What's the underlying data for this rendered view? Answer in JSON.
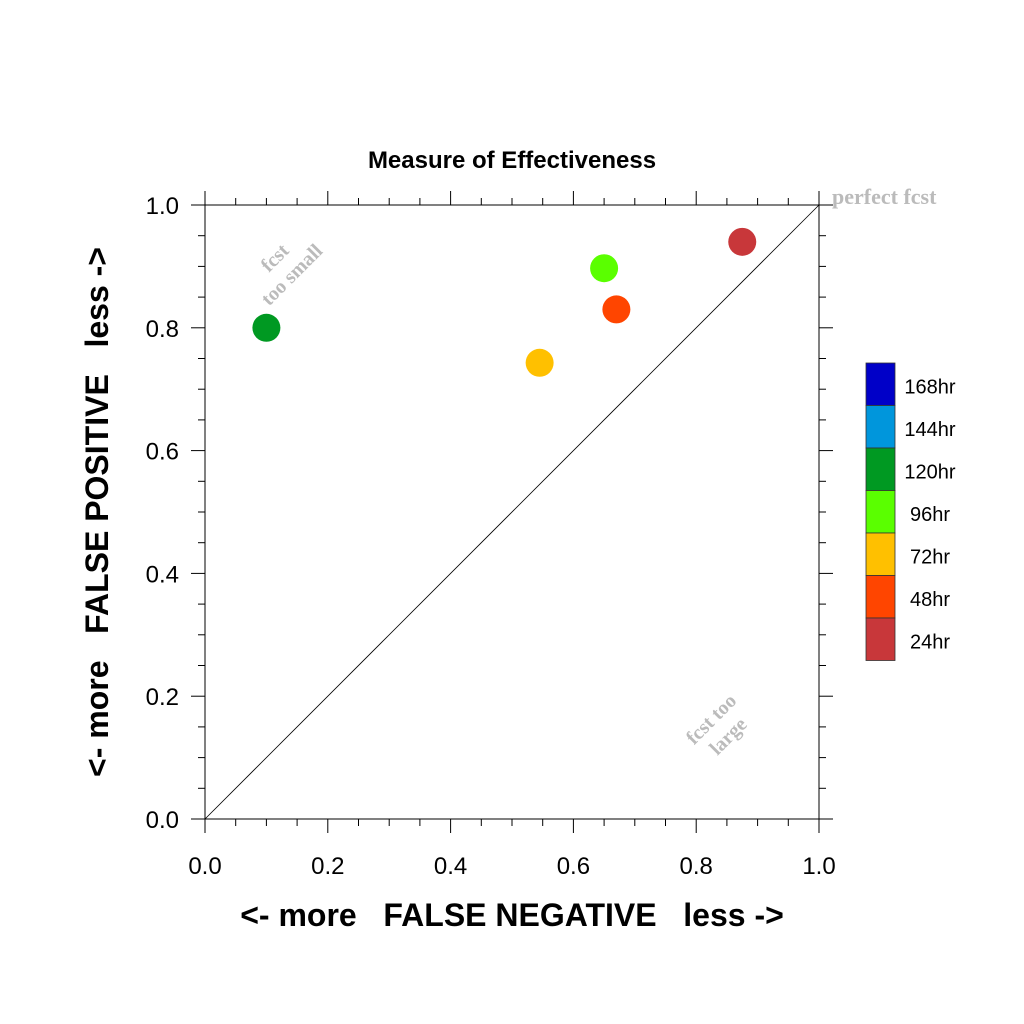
{
  "chart_data": {
    "type": "scatter",
    "title": "Measure of Effectiveness",
    "xlabel": "<- more   FALSE NEGATIVE   less ->",
    "ylabel": "<- more   FALSE POSITIVE   less ->",
    "xlim": [
      0.0,
      1.0
    ],
    "ylim": [
      0.0,
      1.0
    ],
    "xticks": [
      "0.0",
      "0.2",
      "0.4",
      "0.6",
      "0.8",
      "1.0"
    ],
    "yticks": [
      "0.0",
      "0.2",
      "0.4",
      "0.6",
      "0.8",
      "1.0"
    ],
    "diagonal_label": "perfect fcst",
    "region_label_upper": [
      "fcst",
      "too small"
    ],
    "region_label_lower": [
      "fcst too",
      "large"
    ],
    "points": [
      {
        "x": 0.875,
        "y": 0.94,
        "color": "#c8373a"
      },
      {
        "x": 0.67,
        "y": 0.83,
        "color": "#ff4500"
      },
      {
        "x": 0.545,
        "y": 0.743,
        "color": "#ffc000"
      },
      {
        "x": 0.65,
        "y": 0.897,
        "color": "#5aff00"
      },
      {
        "x": 0.1,
        "y": 0.8,
        "color": "#009922"
      }
    ],
    "legend": [
      {
        "label": "168hr",
        "color": "#0000c8"
      },
      {
        "label": "144hr",
        "color": "#0096dc"
      },
      {
        "label": "120hr",
        "color": "#009922"
      },
      {
        "label": "96hr",
        "color": "#5aff00"
      },
      {
        "label": "72hr",
        "color": "#ffc000"
      },
      {
        "label": "48hr",
        "color": "#ff4500"
      },
      {
        "label": "24hr",
        "color": "#c8373a"
      }
    ],
    "legend_placement": "right",
    "grid": false
  }
}
